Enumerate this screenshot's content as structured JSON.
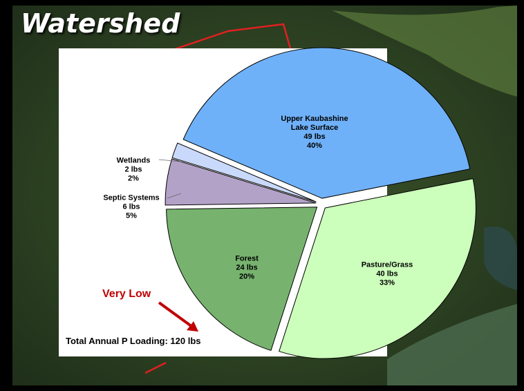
{
  "chart_data": {
    "type": "pie",
    "title": "Watershed",
    "categories": [
      "Upper Kaubashine Lake Surface",
      "Pasture/Grass",
      "Forest",
      "Septic Systems",
      "Wetlands"
    ],
    "values": [
      49,
      40,
      24,
      6,
      2
    ],
    "value_labels": [
      "49 lbs",
      "40 lbs",
      "24 lbs",
      "6 lbs",
      "2 lbs"
    ],
    "percent_labels": [
      "40%",
      "33%",
      "20%",
      "5%",
      "2%"
    ],
    "colors": [
      "#6fb1f8",
      "#ccffbb",
      "#77b36f",
      "#b3a2c8",
      "#c9d9fb"
    ],
    "annotations": [
      "Very Low",
      "Total Annual P Loading: 120 lbs"
    ]
  }
}
